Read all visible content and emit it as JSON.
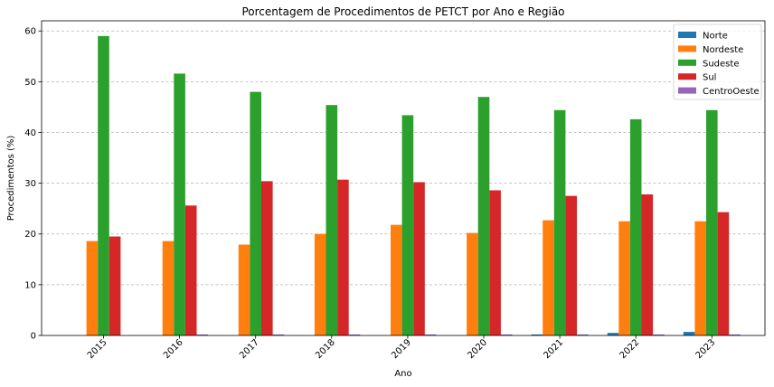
{
  "chart_data": {
    "type": "bar",
    "title": "Porcentagem de Procedimentos de PETCT por Ano e Região",
    "xlabel": "Ano",
    "ylabel": "Procedimentos (%)",
    "ylim": [
      0,
      62
    ],
    "yticks": [
      0,
      10,
      20,
      30,
      40,
      50,
      60
    ],
    "grid": "y-dashed",
    "legend_position": "top-right",
    "categories": [
      "2015",
      "2016",
      "2017",
      "2018",
      "2019",
      "2020",
      "2021",
      "2022",
      "2023"
    ],
    "series": [
      {
        "name": "Norte",
        "color": "#1f77b4",
        "values": [
          0.0,
          0.0,
          0.0,
          0.0,
          0.0,
          0.0,
          0.2,
          0.5,
          0.7
        ]
      },
      {
        "name": "Nordeste",
        "color": "#ff7f0e",
        "values": [
          18.6,
          18.6,
          17.9,
          20.0,
          21.8,
          20.2,
          22.7,
          22.5,
          22.5
        ]
      },
      {
        "name": "Sudeste",
        "color": "#2ca02c",
        "values": [
          59.0,
          51.6,
          48.0,
          45.4,
          43.4,
          47.0,
          44.4,
          42.6,
          44.4
        ]
      },
      {
        "name": "Sul",
        "color": "#d62728",
        "values": [
          19.5,
          25.6,
          30.4,
          30.7,
          30.2,
          28.6,
          27.5,
          27.8,
          24.3
        ]
      },
      {
        "name": "CentroOeste",
        "color": "#9467bd",
        "values": [
          0.0,
          0.2,
          0.2,
          0.2,
          0.2,
          0.2,
          0.2,
          0.2,
          0.2
        ]
      }
    ]
  }
}
